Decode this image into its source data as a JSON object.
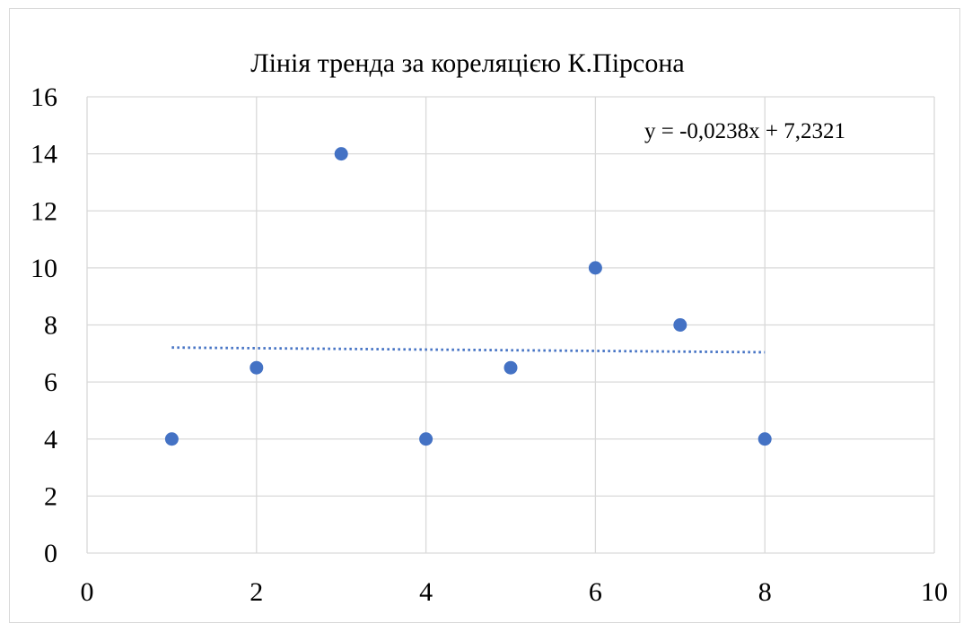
{
  "chart_data": {
    "type": "scatter",
    "title": "Лінія тренда за кореляцією К.Пірсона",
    "xlabel": "",
    "ylabel": "",
    "xlim": [
      0,
      10
    ],
    "ylim": [
      0,
      16
    ],
    "x_ticks": [
      0,
      2,
      4,
      6,
      8,
      10
    ],
    "y_ticks": [
      0,
      2,
      4,
      6,
      8,
      10,
      12,
      14,
      16
    ],
    "grid": true,
    "legend": "none",
    "series": [
      {
        "x": [
          1,
          2,
          3,
          4,
          5,
          6,
          7,
          8
        ],
        "y": [
          4,
          6.5,
          14,
          4,
          6.5,
          10,
          8,
          4
        ],
        "color": "#4472c4"
      }
    ],
    "trendline": {
      "type": "linear",
      "slope": -0.0238,
      "intercept": 7.2321,
      "x_range": [
        1,
        8
      ],
      "style": "dotted",
      "color": "#4472c4",
      "equation_label": "y = -0,0238x + 7,2321"
    },
    "colors": {
      "gridline": "#d9d9d9",
      "marker": "#4472c4"
    }
  }
}
